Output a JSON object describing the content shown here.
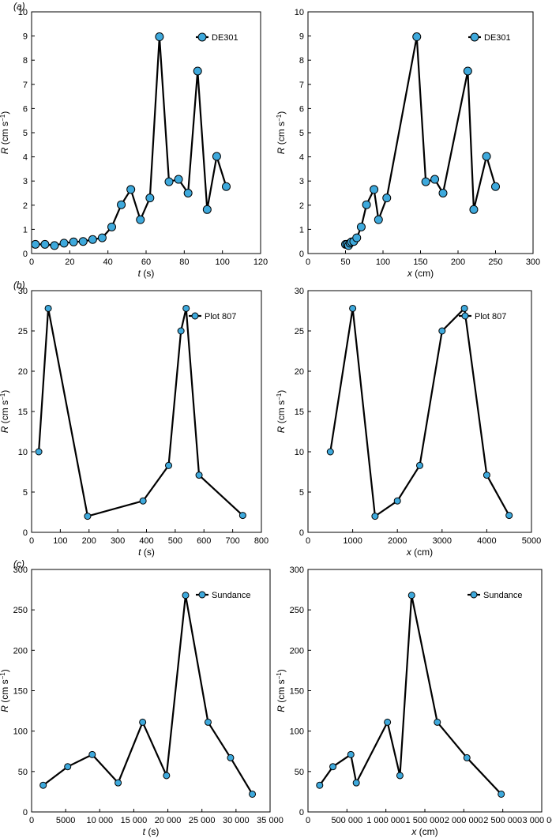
{
  "panel_labels": [
    "(a)",
    "(b)",
    "(c)"
  ],
  "style": {
    "line_color": "#000000",
    "marker_fill": "#3ea9dc",
    "marker_edge": "#000000"
  },
  "chart_data": [
    {
      "type": "line",
      "panel_label": "(a)",
      "xlabel_var": "t",
      "xlabel_unit": " (s)",
      "ylabel_var": "R",
      "ylabel_unit": " (cm s",
      "ylabel_sup": "−1",
      "ylabel_close": ")",
      "xlim": [
        0,
        120
      ],
      "ylim": [
        0,
        10
      ],
      "xticks": [
        0,
        20,
        40,
        60,
        80,
        100,
        120
      ],
      "yticks": [
        0,
        1,
        2,
        3,
        4,
        5,
        6,
        7,
        8,
        9,
        10
      ],
      "legend": "top-right",
      "series": [
        {
          "name": "DE301",
          "x": [
            2,
            7,
            12,
            17,
            22,
            27,
            32,
            37,
            42,
            47,
            52,
            57,
            62,
            67,
            72,
            77,
            82,
            87,
            92,
            97,
            102
          ],
          "y": [
            0.38,
            0.38,
            0.33,
            0.43,
            0.48,
            0.5,
            0.58,
            0.65,
            1.1,
            2.02,
            2.65,
            1.4,
            2.3,
            8.97,
            2.97,
            3.07,
            2.5,
            7.55,
            1.82,
            4.02,
            2.77
          ]
        }
      ]
    },
    {
      "type": "line",
      "xlabel_var": "x",
      "xlabel_unit": " (cm)",
      "ylabel_var": "R",
      "ylabel_unit": " (cm s",
      "ylabel_sup": "−1",
      "ylabel_close": ")",
      "xlim": [
        0,
        300
      ],
      "ylim": [
        0,
        10
      ],
      "xticks": [
        0,
        50,
        100,
        150,
        200,
        250,
        300
      ],
      "yticks": [
        0,
        1,
        2,
        3,
        4,
        5,
        6,
        7,
        8,
        9,
        10
      ],
      "legend": "top-right",
      "series": [
        {
          "name": "DE301",
          "x": [
            50,
            52,
            54,
            56,
            58,
            61,
            65,
            71,
            78,
            88,
            94,
            105,
            145,
            157,
            169,
            180,
            213,
            221,
            238,
            250
          ],
          "y": [
            0.38,
            0.38,
            0.33,
            0.43,
            0.48,
            0.5,
            0.65,
            1.1,
            2.02,
            2.65,
            1.4,
            2.3,
            8.97,
            2.97,
            3.07,
            2.5,
            7.55,
            1.82,
            4.02,
            2.77
          ]
        }
      ]
    },
    {
      "type": "line",
      "panel_label": "(b)",
      "xlabel_var": "t",
      "xlabel_unit": " (s)",
      "ylabel_var": "R",
      "ylabel_unit": " (cm s",
      "ylabel_sup": "−1",
      "ylabel_close": ")",
      "xlim": [
        0,
        800
      ],
      "ylim": [
        0,
        30
      ],
      "xticks": [
        0,
        100,
        200,
        300,
        400,
        500,
        600,
        700,
        800
      ],
      "yticks": [
        0,
        5,
        10,
        15,
        20,
        25,
        30
      ],
      "legend": "top-right",
      "series": [
        {
          "name": "Plot 807",
          "x": [
            25,
            58,
            195,
            388,
            477,
            520,
            538,
            583,
            735
          ],
          "y": [
            10,
            27.8,
            2,
            3.9,
            8.3,
            25,
            27.8,
            7.1,
            2.1
          ]
        }
      ]
    },
    {
      "type": "line",
      "xlabel_var": "x",
      "xlabel_unit": " (cm)",
      "ylabel_var": "R",
      "ylabel_unit": " (cm s",
      "ylabel_sup": "−1",
      "ylabel_close": ")",
      "xlim": [
        0,
        5000
      ],
      "ylim": [
        0,
        30
      ],
      "xticks": [
        0,
        1000,
        2000,
        3000,
        4000,
        5000
      ],
      "yticks": [
        0,
        5,
        10,
        15,
        20,
        25,
        30
      ],
      "legend": "top-right",
      "series": [
        {
          "name": "Plot 807",
          "x": [
            500,
            1000,
            1500,
            2000,
            2500,
            3000,
            3500,
            4000,
            4500
          ],
          "y": [
            10,
            27.8,
            2,
            3.9,
            8.3,
            25,
            27.8,
            7.1,
            2.1
          ]
        }
      ]
    },
    {
      "type": "line",
      "panel_label": "(c)",
      "xlabel_var": "t",
      "xlabel_unit": " (s)",
      "ylabel_var": "R",
      "ylabel_unit": " (cm s",
      "ylabel_sup": "−1",
      "ylabel_close": ")",
      "xlim": [
        0,
        35000
      ],
      "ylim": [
        0,
        300
      ],
      "xticks": [
        0,
        5000,
        10000,
        15000,
        20000,
        25000,
        30000,
        35000
      ],
      "xticklabels": [
        "0",
        "5000",
        "10 000",
        "15 000",
        "20 000",
        "25 000",
        "30 000",
        "35 000"
      ],
      "yticks": [
        0,
        50,
        100,
        150,
        200,
        250,
        300
      ],
      "legend": "top-right",
      "series": [
        {
          "name": "Sundance",
          "x": [
            1700,
            5300,
            8900,
            12700,
            16300,
            19800,
            22600,
            25900,
            29200,
            32400
          ],
          "y": [
            33,
            56,
            71,
            36,
            111,
            45,
            268,
            111,
            67,
            22
          ]
        }
      ]
    },
    {
      "type": "line",
      "xlabel_var": "x",
      "xlabel_unit": " (cm)",
      "ylabel_var": "R",
      "ylabel_unit": " (cm s",
      "ylabel_sup": "−1",
      "ylabel_close": ")",
      "xlim": [
        0,
        3000000
      ],
      "ylim": [
        0,
        300
      ],
      "xticks": [
        0,
        500000,
        1000000,
        1500000,
        2000000,
        2500000,
        3000000
      ],
      "xticklabels": [
        "0",
        "500 000",
        "1 000 000",
        "1 500 000",
        "2 000 000",
        "2 500 000",
        "3 000 000"
      ],
      "yticks": [
        0,
        50,
        100,
        150,
        200,
        250,
        300
      ],
      "legend": "top-right",
      "series": [
        {
          "name": "Sundance",
          "x": [
            150000,
            320000,
            550000,
            620000,
            1020000,
            1180000,
            1330000,
            1660000,
            2040000,
            2480000
          ],
          "y": [
            33,
            56,
            71,
            36,
            111,
            45,
            268,
            111,
            67,
            22
          ]
        }
      ]
    }
  ]
}
